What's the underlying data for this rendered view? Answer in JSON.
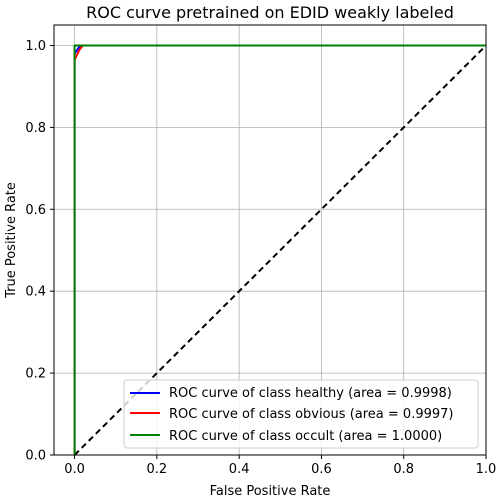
{
  "chart_data": {
    "type": "line",
    "title": "ROC curve pretrained on EDID weakly labeled",
    "xlabel": "False Positive Rate",
    "ylabel": "True Positive Rate",
    "xlim": [
      -0.05,
      1.0
    ],
    "ylim": [
      0.0,
      1.05
    ],
    "xticks": [
      "0.0",
      "0.2",
      "0.4",
      "0.6",
      "0.8",
      "1.0"
    ],
    "yticks": [
      "0.0",
      "0.2",
      "0.4",
      "0.6",
      "0.8",
      "1.0"
    ],
    "grid": true,
    "legend_position": "lower-right",
    "series": [
      {
        "name": "ROC curve of class healthy (area = 0.9998)",
        "color": "#0000ff",
        "x": [
          0.0,
          0.0,
          0.0,
          0.01,
          0.02,
          1.0
        ],
        "y": [
          0.0,
          0.97,
          0.98,
          0.995,
          1.0,
          1.0
        ]
      },
      {
        "name": "ROC curve of class obvious (area = 0.9997)",
        "color": "#ff0000",
        "x": [
          0.0,
          0.0,
          0.005,
          0.012,
          0.02,
          1.0
        ],
        "y": [
          0.0,
          0.965,
          0.975,
          0.99,
          1.0,
          1.0
        ]
      },
      {
        "name": "ROC curve of class occult (area = 1.0000)",
        "color": "#008000",
        "x": [
          0.0,
          0.0,
          1.0
        ],
        "y": [
          0.0,
          1.0,
          1.0
        ]
      }
    ],
    "reference_line": {
      "x": [
        0.0,
        1.0
      ],
      "y": [
        0.0,
        1.0
      ],
      "color": "#000000",
      "style": "dashed"
    }
  }
}
